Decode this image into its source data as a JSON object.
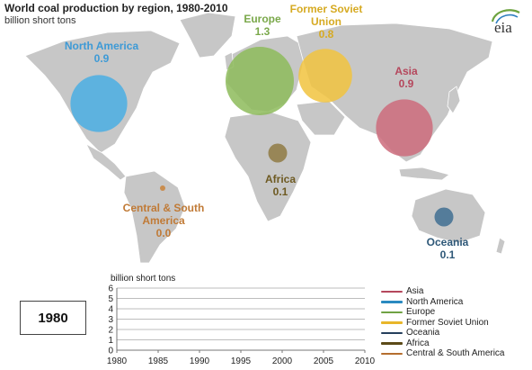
{
  "title": "World coal production by region, 1980-2010",
  "subtitle": "billion short tons",
  "logo_text": "eia",
  "year_display": "1980",
  "chart_data": [
    {
      "type": "bubble-map",
      "title": "World coal production by region, 1980-2010",
      "subtitle": "billion short tons",
      "year": "1980",
      "regions": [
        {
          "key": "north_america",
          "name": "North America",
          "value": "0.9",
          "color": "#4aaee3"
        },
        {
          "key": "europe",
          "name": "Europe",
          "value": "1.3",
          "color": "#8dbb5b"
        },
        {
          "key": "fsu",
          "name": "Former Soviet Union",
          "value": "0.8",
          "color": "#f1c33e"
        },
        {
          "key": "asia",
          "name": "Asia",
          "value": "0.9",
          "color": "#cd6b7b"
        },
        {
          "key": "africa",
          "name": "Africa",
          "value": "0.1",
          "color": "#8f7a43"
        },
        {
          "key": "csa",
          "name": "Central & South America",
          "value": "0.0",
          "color": "#c9833a"
        },
        {
          "key": "oceania",
          "name": "Oceania",
          "value": "0.1",
          "color": "#3f6f92"
        }
      ]
    },
    {
      "type": "line",
      "ylabel": "billion short tons",
      "xlim": [
        1980,
        2010
      ],
      "ylim": [
        0,
        6
      ],
      "x_ticks": [
        "1980",
        "1985",
        "1990",
        "1995",
        "2000",
        "2005",
        "2010"
      ],
      "y_ticks": [
        "0",
        "1",
        "2",
        "3",
        "4",
        "5",
        "6"
      ],
      "grid": true,
      "legend_position": "right",
      "series": [
        {
          "name": "Asia",
          "color": "#b5475c",
          "values": []
        },
        {
          "name": "North America",
          "color": "#2a8ac0",
          "values": []
        },
        {
          "name": "Europe",
          "color": "#6fa244",
          "values": []
        },
        {
          "name": "Former Soviet Union",
          "color": "#e8b62a",
          "values": []
        },
        {
          "name": "Oceania",
          "color": "#253f5c",
          "values": []
        },
        {
          "name": "Africa",
          "color": "#5c4a18",
          "values": []
        },
        {
          "name": "Central & South America",
          "color": "#b46e2e",
          "values": []
        }
      ]
    }
  ]
}
